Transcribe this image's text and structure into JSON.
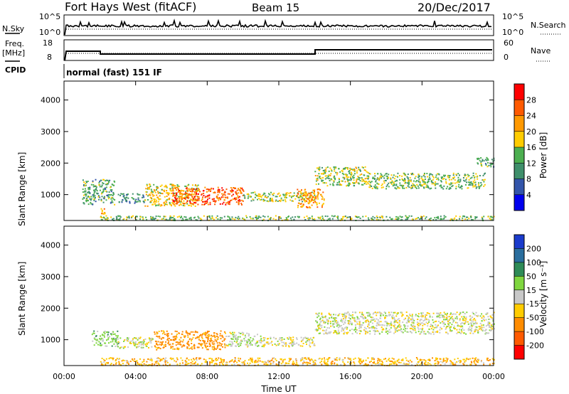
{
  "header": {
    "site": "Fort Hays West (fitACF)",
    "beam": "Beam 15",
    "date": "20/Dec/2017"
  },
  "panels": {
    "nsky": {
      "left_label": "N.Sky",
      "right_label": "N.Search",
      "left_ticks": [
        "10^5",
        "10^0"
      ],
      "right_ticks": [
        "10^5",
        "10^0"
      ]
    },
    "freq": {
      "left_label_1": "Freq.",
      "left_label_2": "[MHz]",
      "right_label": "Nave",
      "left_ticks": [
        "18",
        "8"
      ],
      "right_ticks": [
        "60",
        "0"
      ]
    },
    "cpid": {
      "label": "CPID",
      "mode": "normal (fast) 151 IF"
    }
  },
  "axes": {
    "y_label": "Slant Range [km]",
    "y_ticks": [
      "4000",
      "3000",
      "2000",
      "1000"
    ],
    "x_ticks": [
      "00:00",
      "04:00",
      "08:00",
      "12:00",
      "16:00",
      "20:00",
      "00:00"
    ],
    "x_label": "Time UT"
  },
  "colorbars": {
    "power": {
      "label": "Power [dB]",
      "ticks": [
        "28",
        "24",
        "20",
        "16",
        "12",
        "8",
        "4"
      ],
      "colors": [
        "#ff0000",
        "#ff5a00",
        "#ff9900",
        "#ffcc00",
        "#4caf50",
        "#3f8f6b",
        "#3355aa",
        "#0000ee"
      ]
    },
    "velocity": {
      "label": "Velocity [m s⁻¹]",
      "ticks": [
        "200",
        "100",
        "50",
        "15",
        "-15",
        "-50",
        "-100",
        "-200"
      ],
      "colors": [
        "#1a3bcc",
        "#2a6e9e",
        "#2e8b57",
        "#7fd63f",
        "#c8c8c8",
        "#ffcc00",
        "#ff8c00",
        "#ff5a00",
        "#ff0000"
      ]
    }
  },
  "chart_data": [
    {
      "type": "heatmap",
      "title": "Power",
      "xlabel": "Time UT",
      "ylabel": "Slant Range [km]",
      "xlim": [
        "00:00",
        "24:00"
      ],
      "ylim": [
        180,
        4600
      ],
      "colorbar": {
        "label": "Power [dB]",
        "range": [
          0,
          32
        ]
      },
      "regions": [
        {
          "t": [
            1.0,
            2.8
          ],
          "r": [
            700,
            1500
          ],
          "db": 12
        },
        {
          "t": [
            2.0,
            2.3
          ],
          "r": [
            380,
            650
          ],
          "db": 20
        },
        {
          "t": [
            3.0,
            4.5
          ],
          "r": [
            750,
            1050
          ],
          "db": 10
        },
        {
          "t": [
            4.5,
            7.5
          ],
          "r": [
            650,
            1350
          ],
          "db": 18
        },
        {
          "t": [
            6.0,
            10.0
          ],
          "r": [
            700,
            1250
          ],
          "db": 26
        },
        {
          "t": [
            10.0,
            14.0
          ],
          "r": [
            800,
            1100
          ],
          "db": 16
        },
        {
          "t": [
            13.0,
            14.5
          ],
          "r": [
            600,
            1200
          ],
          "db": 22
        },
        {
          "t": [
            14.0,
            17.0
          ],
          "r": [
            1300,
            1900
          ],
          "db": 16
        },
        {
          "t": [
            17.0,
            23.5
          ],
          "r": [
            1200,
            1700
          ],
          "db": 14
        },
        {
          "t": [
            23.0,
            24.0
          ],
          "r": [
            1900,
            2200
          ],
          "db": 12
        },
        {
          "t": [
            2.0,
            24.0
          ],
          "r": [
            200,
            350
          ],
          "db": 14
        }
      ]
    },
    {
      "type": "heatmap",
      "title": "Velocity",
      "xlabel": "Time UT",
      "ylabel": "Slant Range [km]",
      "xlim": [
        "00:00",
        "24:00"
      ],
      "ylim": [
        180,
        4600
      ],
      "colorbar": {
        "label": "Velocity [m s⁻¹]",
        "range": [
          -250,
          250
        ]
      },
      "regions": [
        {
          "t": [
            1.5,
            3.0
          ],
          "r": [
            800,
            1300
          ],
          "v": 30
        },
        {
          "t": [
            3.0,
            5.0
          ],
          "r": [
            750,
            1100
          ],
          "v": 0
        },
        {
          "t": [
            5.0,
            9.0
          ],
          "r": [
            700,
            1300
          ],
          "v": -70
        },
        {
          "t": [
            9.0,
            11.0
          ],
          "r": [
            800,
            1250
          ],
          "v": 10
        },
        {
          "t": [
            11.0,
            14.0
          ],
          "r": [
            800,
            1100
          ],
          "v": -5
        },
        {
          "t": [
            14.0,
            24.0
          ],
          "r": [
            1200,
            1900
          ],
          "v": 0
        },
        {
          "t": [
            2.0,
            24.0
          ],
          "r": [
            200,
            450
          ],
          "v": -40
        }
      ]
    }
  ]
}
